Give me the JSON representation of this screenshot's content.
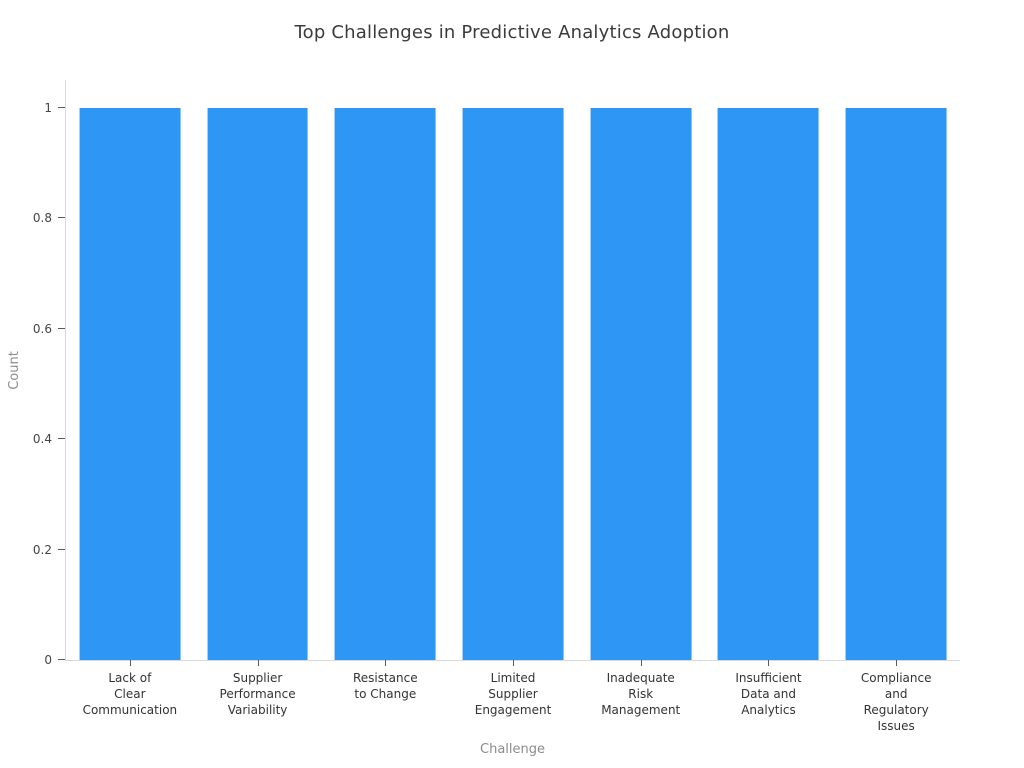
{
  "title": "Top Challenges in Predictive Analytics Adoption",
  "chart_data": {
    "type": "bar",
    "title": "Top Challenges in Predictive Analytics Adoption",
    "xlabel": "Challenge",
    "ylabel": "Count",
    "categories": [
      "Lack of\nClear\nCommunication",
      "Supplier\nPerformance\nVariability",
      "Resistance\nto Change",
      "Limited\nSupplier\nEngagement",
      "Inadequate\nRisk\nManagement",
      "Insufficient\nData and\nAnalytics",
      "Compliance\nand\nRegulatory\nIssues"
    ],
    "values": [
      1,
      1,
      1,
      1,
      1,
      1,
      1
    ],
    "ylim": [
      0,
      1.05
    ],
    "yticks": [
      0,
      0.2,
      0.4,
      0.6,
      0.8,
      1
    ],
    "ytick_labels": [
      "0",
      "0.2",
      "0.4",
      "0.6",
      "0.8",
      "1"
    ],
    "grid": false,
    "legend": null,
    "bar_color": "#2E96F5"
  },
  "colors": {
    "bar": "#2E96F5",
    "axis_line": "#D9D9D9",
    "tick_mark": "#595959",
    "title_text": "#3B3B3B",
    "tick_label_text": "#444444",
    "axis_label_text": "#8C8C8C",
    "background": "#FFFFFF"
  }
}
